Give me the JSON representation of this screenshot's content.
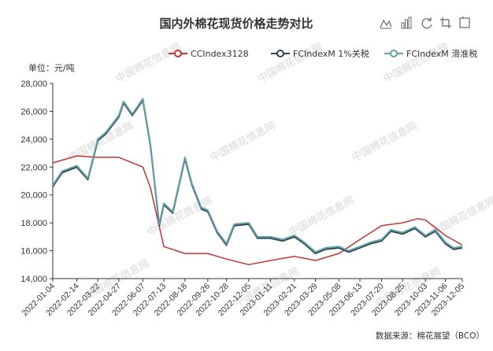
{
  "chart_data": {
    "type": "line",
    "title": "国内外棉花现货价格走势对比",
    "unit_label": "单位：元/吨",
    "source": "数据来源：棉花展望（BCO）",
    "watermark": "中国棉花信息网",
    "legend_position": "top-right",
    "grid": false,
    "ylim": [
      14000,
      28000
    ],
    "yticks": [
      "14,000",
      "16,000",
      "18,000",
      "20,000",
      "22,000",
      "24,000",
      "26,000",
      "28,000"
    ],
    "xticks": [
      "2022-01-04",
      "2022-02-14",
      "2022-03-22",
      "2022-04-27",
      "2022-06-07",
      "2022-07-13",
      "2022-08-18",
      "2022-09-26",
      "2022-10-28",
      "2022-12-05",
      "2023-01-11",
      "2023-02-21",
      "2023-03-29",
      "2023-05-08",
      "2023-06-13",
      "2023-07-20",
      "2023-08-25",
      "2023-10-03",
      "2023-11-06",
      "2023-12-05"
    ],
    "series": [
      {
        "name": "CCIndex3128",
        "color": "#c23531",
        "x": [
          "2022-01-04",
          "2022-02-14",
          "2022-03-22",
          "2022-04-27",
          "2022-06-07",
          "2022-06-20",
          "2022-07-13",
          "2022-08-18",
          "2022-09-26",
          "2022-10-28",
          "2022-12-05",
          "2023-01-11",
          "2023-02-21",
          "2023-03-29",
          "2023-05-08",
          "2023-06-13",
          "2023-07-20",
          "2023-08-25",
          "2023-09-20",
          "2023-10-03",
          "2023-11-06",
          "2023-12-05"
        ],
        "values": [
          22300,
          22800,
          22700,
          22700,
          22000,
          20500,
          16300,
          15800,
          15800,
          15400,
          15000,
          15300,
          15600,
          15300,
          15800,
          16800,
          17800,
          18000,
          18300,
          18200,
          17100,
          16400
        ]
      },
      {
        "name": "FCIndexM 1%关税",
        "color": "#2f4554",
        "x": [
          "2022-01-04",
          "2022-01-20",
          "2022-02-14",
          "2022-03-05",
          "2022-03-22",
          "2022-04-05",
          "2022-04-27",
          "2022-05-05",
          "2022-05-20",
          "2022-06-07",
          "2022-06-20",
          "2022-07-05",
          "2022-07-13",
          "2022-07-28",
          "2022-08-18",
          "2022-08-30",
          "2022-09-15",
          "2022-09-26",
          "2022-10-12",
          "2022-10-28",
          "2022-11-10",
          "2022-12-05",
          "2022-12-20",
          "2023-01-11",
          "2023-02-01",
          "2023-02-21",
          "2023-03-10",
          "2023-03-29",
          "2023-04-15",
          "2023-05-08",
          "2023-05-25",
          "2023-06-13",
          "2023-07-01",
          "2023-07-20",
          "2023-08-05",
          "2023-08-25",
          "2023-09-15",
          "2023-10-03",
          "2023-10-20",
          "2023-11-06",
          "2023-11-20",
          "2023-12-05"
        ],
        "values": [
          20600,
          21600,
          22000,
          21100,
          23900,
          24400,
          25600,
          26600,
          25700,
          26800,
          23500,
          17800,
          19300,
          18700,
          22600,
          20700,
          19000,
          18800,
          17300,
          16400,
          17800,
          17900,
          16900,
          16900,
          16700,
          17000,
          16500,
          15800,
          16100,
          16200,
          15900,
          16200,
          16500,
          16700,
          17400,
          17200,
          17600,
          17000,
          17400,
          16500,
          16100,
          16200
        ]
      },
      {
        "name": "FCIndexM 滑准税",
        "color": "#61a0a8",
        "x": [
          "2022-01-04",
          "2022-01-20",
          "2022-02-14",
          "2022-03-05",
          "2022-03-22",
          "2022-04-05",
          "2022-04-27",
          "2022-05-05",
          "2022-05-20",
          "2022-06-07",
          "2022-06-20",
          "2022-07-05",
          "2022-07-13",
          "2022-07-28",
          "2022-08-18",
          "2022-08-30",
          "2022-09-15",
          "2022-09-26",
          "2022-10-12",
          "2022-10-28",
          "2022-11-10",
          "2022-12-05",
          "2022-12-20",
          "2023-01-11",
          "2023-02-01",
          "2023-02-21",
          "2023-03-10",
          "2023-03-29",
          "2023-04-15",
          "2023-05-08",
          "2023-05-25",
          "2023-06-13",
          "2023-07-01",
          "2023-07-20",
          "2023-08-05",
          "2023-08-25",
          "2023-09-15",
          "2023-10-03",
          "2023-10-20",
          "2023-11-06",
          "2023-11-20",
          "2023-12-05"
        ],
        "values": [
          20700,
          21700,
          22100,
          21200,
          24000,
          24500,
          25700,
          26700,
          25800,
          26900,
          23600,
          17900,
          19400,
          18800,
          22700,
          20800,
          19100,
          18900,
          17400,
          16500,
          17900,
          18000,
          17000,
          17000,
          16800,
          17100,
          16600,
          15900,
          16200,
          16300,
          16000,
          16300,
          16600,
          16800,
          17500,
          17300,
          17700,
          17100,
          17500,
          16600,
          16200,
          16300
        ]
      }
    ]
  },
  "toolbox": {
    "line_icon": "line-chart-icon",
    "bar_icon": "bar-chart-icon",
    "restore_icon": "restore-icon",
    "save_icon": "save-image-icon"
  }
}
